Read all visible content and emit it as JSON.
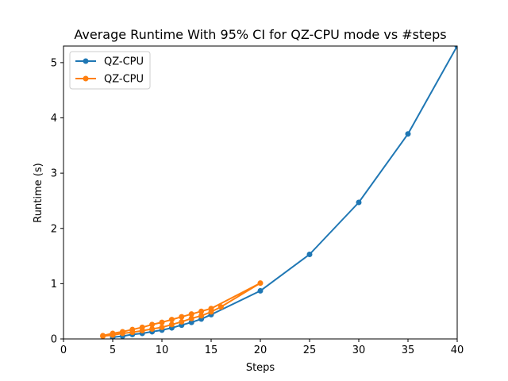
{
  "chart_data": {
    "type": "line",
    "title": "Average Runtime With 95% CI for QZ-CPU mode vs #steps",
    "xlabel": "Steps",
    "ylabel": "Runtime (s)",
    "xlim": [
      0,
      40
    ],
    "ylim": [
      0,
      5.3
    ],
    "xticks": [
      0,
      5,
      10,
      15,
      20,
      25,
      30,
      35,
      40
    ],
    "yticks": [
      0,
      1,
      2,
      3,
      4,
      5
    ],
    "grid": false,
    "legend_position": "top-left",
    "series": [
      {
        "name": "QZ-CPU",
        "color": "#1f77b4",
        "x": [
          5,
          6,
          7,
          8,
          9,
          10,
          11,
          12,
          13,
          14,
          15,
          20,
          25,
          30,
          35,
          40
        ],
        "y": [
          0.03,
          0.05,
          0.08,
          0.1,
          0.13,
          0.16,
          0.2,
          0.25,
          0.3,
          0.36,
          0.44,
          0.87,
          1.53,
          2.47,
          3.71,
          5.3
        ]
      },
      {
        "name": "QZ-CPU",
        "color": "#ff7f0e",
        "x": [
          4,
          5,
          6,
          7,
          8,
          9,
          10,
          11,
          12,
          13,
          14,
          15,
          16,
          20,
          15,
          14,
          13,
          12,
          11,
          10,
          9,
          8,
          7,
          6,
          5,
          4
        ],
        "y": [
          0.05,
          0.07,
          0.1,
          0.12,
          0.15,
          0.18,
          0.21,
          0.26,
          0.31,
          0.37,
          0.42,
          0.49,
          0.58,
          1.01,
          0.55,
          0.5,
          0.45,
          0.4,
          0.35,
          0.3,
          0.26,
          0.21,
          0.17,
          0.13,
          0.1,
          0.06
        ]
      }
    ]
  }
}
